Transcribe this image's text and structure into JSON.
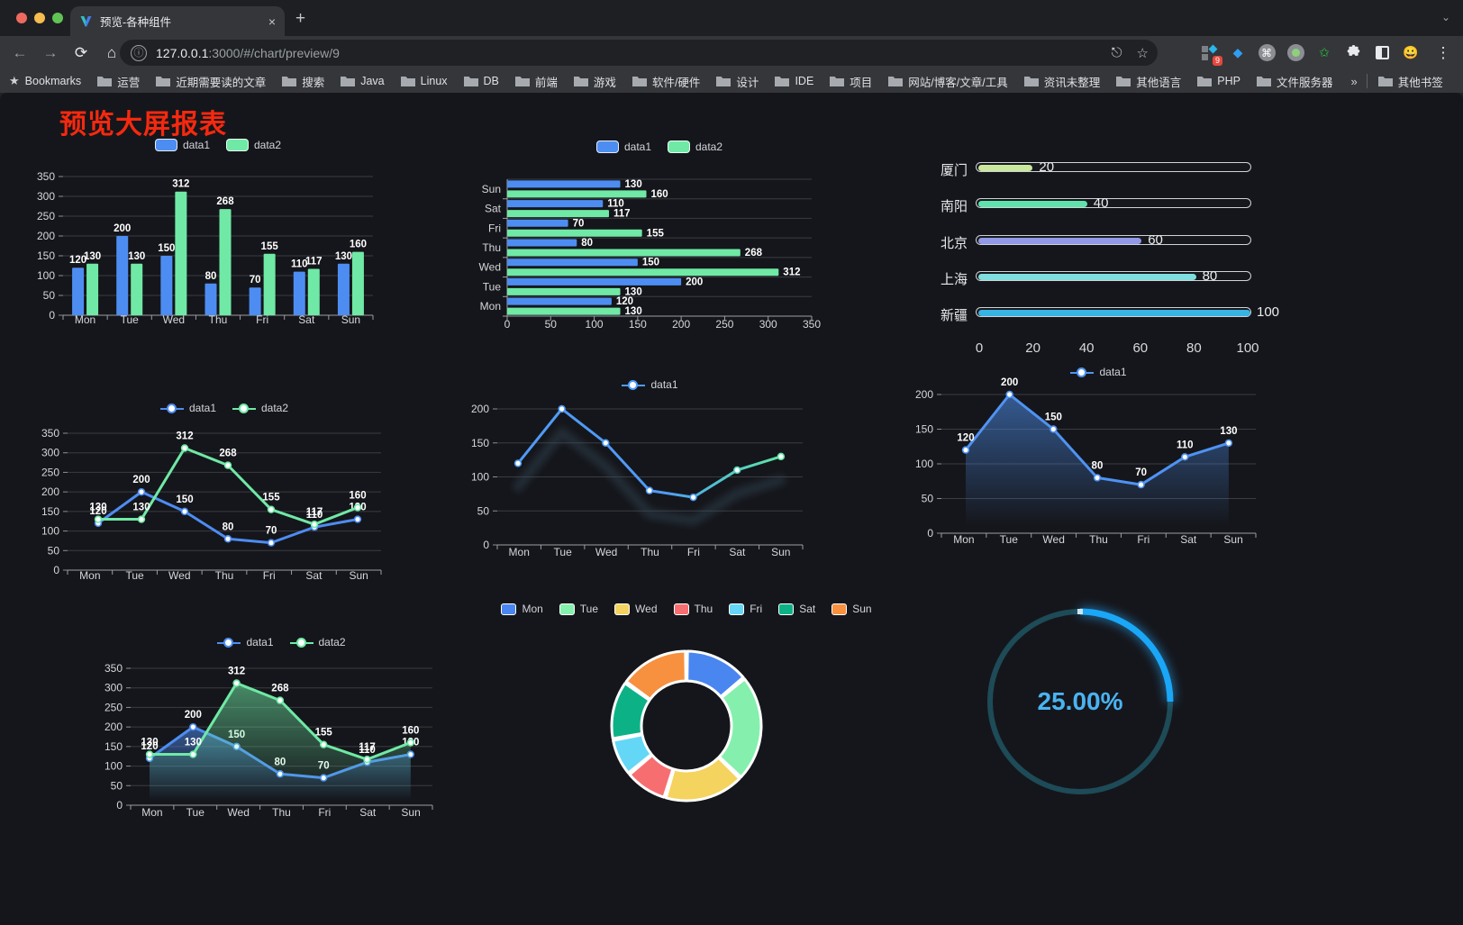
{
  "browser": {
    "tab": {
      "title": "预览-各种组件",
      "close": "×",
      "new_tab": "+"
    },
    "url_host": "127.0.0.1",
    "url_rest": ":3000/#/chart/preview/9",
    "bookmarks_label": "Bookmarks",
    "bookmarks": [
      "运营",
      "近期需要读的文章",
      "搜索",
      "Java",
      "Linux",
      "DB",
      "前端",
      "游戏",
      "软件/硬件",
      "设计",
      "IDE",
      "项目",
      "网站/博客/文章/工具",
      "资讯未整理",
      "其他语言",
      "PHP",
      "文件服务器"
    ],
    "bookmarks_overflow": "»",
    "other_bookmarks": "其他书签",
    "extension_badge": "9"
  },
  "page": {
    "title": "预览大屏报表"
  },
  "colors": {
    "series1": "#4d8df2",
    "series2": "#6fe9a5",
    "title_red": "#f5290f",
    "gauge_arc": "#1aa7f7",
    "gauge_track": "#1d4b57",
    "gauge_text": "#4ab3f2"
  },
  "chart_data": [
    {
      "type": "bar",
      "categories": [
        "Mon",
        "Tue",
        "Wed",
        "Thu",
        "Fri",
        "Sat",
        "Sun"
      ],
      "series": [
        {
          "name": "data1",
          "color": "#4d8df2",
          "values": [
            120,
            200,
            150,
            80,
            70,
            110,
            130
          ]
        },
        {
          "name": "data2",
          "color": "#6fe9a5",
          "values": [
            130,
            130,
            312,
            268,
            155,
            117,
            160
          ]
        }
      ],
      "ylim": [
        0,
        350
      ],
      "yticks": [
        0,
        50,
        100,
        150,
        200,
        250,
        300,
        350
      ],
      "value_labels": true,
      "legend": "bar"
    },
    {
      "type": "hbar",
      "categories": [
        "Mon",
        "Tue",
        "Wed",
        "Thu",
        "Fri",
        "Sat",
        "Sun"
      ],
      "series": [
        {
          "name": "data1",
          "color": "#4d8df2",
          "values": [
            120,
            200,
            150,
            80,
            70,
            110,
            130
          ]
        },
        {
          "name": "data2",
          "color": "#6fe9a5",
          "values": [
            130,
            130,
            312,
            268,
            155,
            117,
            160
          ]
        }
      ],
      "xlim": [
        0,
        350
      ],
      "xticks": [
        0,
        50,
        100,
        150,
        200,
        250,
        300,
        350
      ],
      "value_labels": true,
      "legend": "bar"
    },
    {
      "type": "progress",
      "max": 100,
      "xticks": [
        0,
        20,
        40,
        60,
        80,
        100
      ],
      "rows": [
        {
          "label": "厦门",
          "value": 20,
          "color": "#c9e89b"
        },
        {
          "label": "南阳",
          "value": 40,
          "color": "#5fe3ad"
        },
        {
          "label": "北京",
          "value": 60,
          "color": "#9198e5"
        },
        {
          "label": "上海",
          "value": 80,
          "color": "#7fdede"
        },
        {
          "label": "新疆",
          "value": 100,
          "color": "#38b3e2"
        }
      ]
    },
    {
      "type": "line",
      "categories": [
        "Mon",
        "Tue",
        "Wed",
        "Thu",
        "Fri",
        "Sat",
        "Sun"
      ],
      "series": [
        {
          "name": "data1",
          "color": "#4d8df2",
          "values": [
            120,
            200,
            150,
            80,
            70,
            110,
            130
          ]
        },
        {
          "name": "data2",
          "color": "#6fe9a5",
          "values": [
            130,
            130,
            312,
            268,
            155,
            117,
            160
          ]
        }
      ],
      "ylim": [
        0,
        350
      ],
      "yticks": [
        0,
        50,
        100,
        150,
        200,
        250,
        300,
        350
      ],
      "value_labels": true,
      "legend": "line"
    },
    {
      "type": "line",
      "categories": [
        "Mon",
        "Tue",
        "Wed",
        "Thu",
        "Fri",
        "Sat",
        "Sun"
      ],
      "series": [
        {
          "name": "data1",
          "color": "#4f9bf5",
          "gradient_end": "#5fe6a3",
          "values": [
            120,
            200,
            150,
            80,
            70,
            110,
            130
          ]
        }
      ],
      "ylim": [
        0,
        200
      ],
      "yticks": [
        0,
        50,
        100,
        150,
        200
      ],
      "value_labels": false,
      "shadow": true,
      "legend": "line"
    },
    {
      "type": "line",
      "area": true,
      "categories": [
        "Mon",
        "Tue",
        "Wed",
        "Thu",
        "Fri",
        "Sat",
        "Sun"
      ],
      "series": [
        {
          "name": "data1",
          "color": "#4f93f3",
          "values": [
            120,
            200,
            150,
            80,
            70,
            110,
            130
          ]
        }
      ],
      "ylim": [
        0,
        200
      ],
      "yticks": [
        0,
        50,
        100,
        150,
        200
      ],
      "value_labels": true,
      "legend": "line"
    },
    {
      "type": "line",
      "area": true,
      "categories": [
        "Mon",
        "Tue",
        "Wed",
        "Thu",
        "Fri",
        "Sat",
        "Sun"
      ],
      "series": [
        {
          "name": "data1",
          "color": "#4d8df2",
          "values": [
            120,
            200,
            150,
            80,
            70,
            110,
            130
          ]
        },
        {
          "name": "data2",
          "color": "#6fe9a5",
          "values": [
            130,
            130,
            312,
            268,
            155,
            117,
            160
          ]
        }
      ],
      "ylim": [
        0,
        350
      ],
      "yticks": [
        0,
        50,
        100,
        150,
        200,
        250,
        300,
        350
      ],
      "value_labels": true,
      "legend": "line"
    },
    {
      "type": "donut",
      "items": [
        {
          "name": "Mon",
          "value": 120,
          "color": "#4a86f0"
        },
        {
          "name": "Tue",
          "value": 200,
          "color": "#85f0ad"
        },
        {
          "name": "Wed",
          "value": 150,
          "color": "#f5d35f"
        },
        {
          "name": "Thu",
          "value": 80,
          "color": "#f76e71"
        },
        {
          "name": "Fri",
          "value": 70,
          "color": "#64d7f7"
        },
        {
          "name": "Sat",
          "value": 110,
          "color": "#0cb286"
        },
        {
          "name": "Sun",
          "value": 130,
          "color": "#f7913f"
        }
      ]
    },
    {
      "type": "gauge",
      "label": "25.00%",
      "percent": 25,
      "color": "#1aa7f7",
      "track": "#1d4b57",
      "text_color": "#4ab3f2"
    }
  ]
}
